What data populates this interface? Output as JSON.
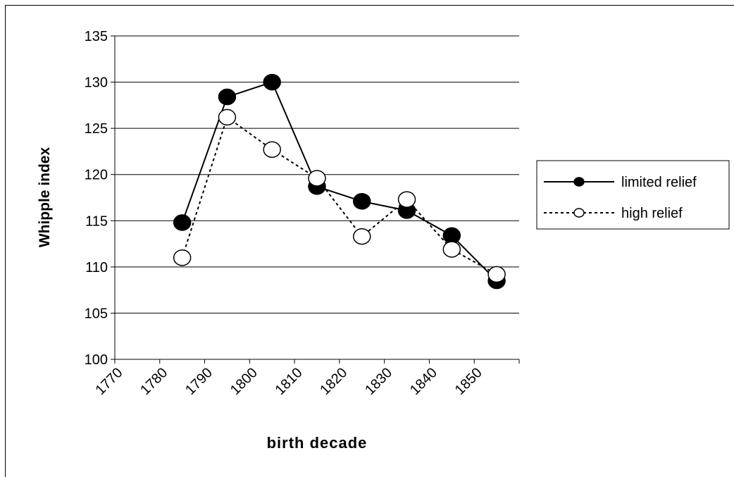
{
  "chart_data": {
    "type": "line",
    "x_label": "birth decade",
    "y_label": "Whipple index",
    "x": [
      1785,
      1795,
      1805,
      1815,
      1825,
      1835,
      1845,
      1855
    ],
    "series": [
      {
        "name": "limited relief",
        "color": "#000000",
        "marker": "filled",
        "dash": "solid",
        "values": [
          114.8,
          128.4,
          130.0,
          118.7,
          117.1,
          116.1,
          113.4,
          108.5
        ]
      },
      {
        "name": "high relief",
        "color": "#000000",
        "marker": "open",
        "dash": "dotted",
        "values": [
          111.0,
          126.2,
          122.7,
          119.6,
          113.3,
          117.3,
          111.9,
          109.2
        ]
      }
    ],
    "xlim": [
      1770,
      1860
    ],
    "xticks": [
      1770,
      1780,
      1790,
      1800,
      1810,
      1820,
      1830,
      1840,
      1850
    ],
    "ylim": [
      100,
      135
    ],
    "yticks": [
      100,
      105,
      110,
      115,
      120,
      125,
      130,
      135
    ],
    "grid": true,
    "legend": "right"
  }
}
